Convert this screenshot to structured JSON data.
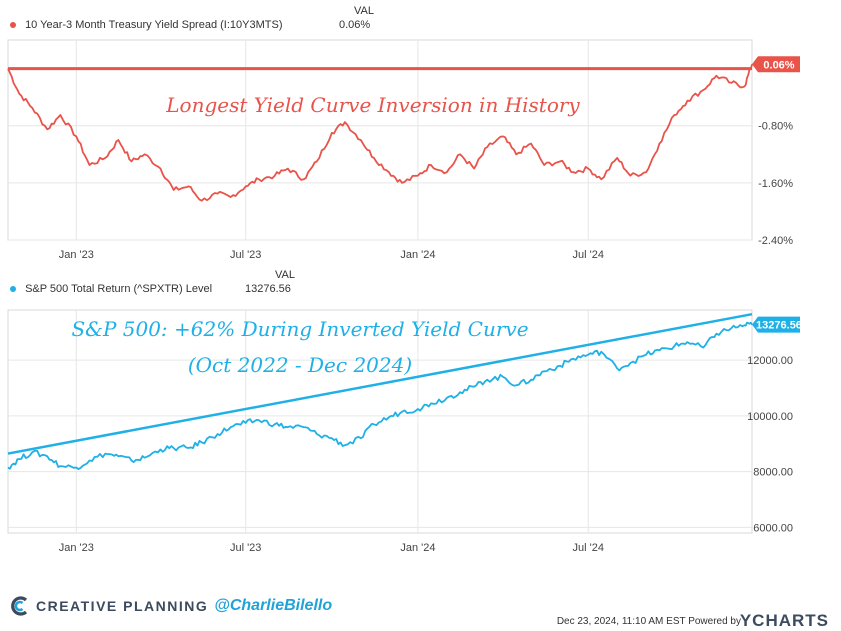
{
  "legend_top": {
    "series_name": "10 Year-3 Month Treasury Yield Spread (I:10Y3MTS)",
    "val_header": "VAL",
    "value": "0.06%",
    "color": "#e8534a"
  },
  "legend_bottom": {
    "series_name": "S&P 500 Total Return (^SPXTR) Level",
    "val_header": "VAL",
    "value": "13276.56",
    "color": "#1eb0e6"
  },
  "footer": {
    "brand": "CREATIVE PLANNING",
    "handle": "@CharlieBilello",
    "timestamp": "Dec 23, 2024, 11:10 AM EST Powered by",
    "ycharts": "YCHARTS"
  },
  "chart_data": [
    {
      "type": "line",
      "series": [
        {
          "name": "10 Year-3 Month Treasury Yield Spread (I:10Y3MTS)",
          "color": "#e8534a",
          "x": [
            "2022-10-20",
            "2022-11-01",
            "2022-11-15",
            "2022-12-01",
            "2022-12-15",
            "2023-01-01",
            "2023-01-15",
            "2023-02-01",
            "2023-02-15",
            "2023-03-01",
            "2023-03-15",
            "2023-04-01",
            "2023-04-15",
            "2023-05-01",
            "2023-05-15",
            "2023-06-01",
            "2023-06-15",
            "2023-07-01",
            "2023-07-15",
            "2023-08-01",
            "2023-08-15",
            "2023-09-01",
            "2023-09-15",
            "2023-10-01",
            "2023-10-15",
            "2023-11-01",
            "2023-11-15",
            "2023-12-01",
            "2023-12-15",
            "2024-01-01",
            "2024-01-15",
            "2024-02-01",
            "2024-02-15",
            "2024-03-01",
            "2024-03-15",
            "2024-04-01",
            "2024-04-15",
            "2024-05-01",
            "2024-05-15",
            "2024-06-01",
            "2024-06-15",
            "2024-07-01",
            "2024-07-15",
            "2024-08-01",
            "2024-08-15",
            "2024-09-01",
            "2024-09-15",
            "2024-10-01",
            "2024-10-15",
            "2024-11-01",
            "2024-11-15",
            "2024-12-01",
            "2024-12-15",
            "2024-12-23"
          ],
          "values": [
            0.0,
            -0.35,
            -0.55,
            -0.85,
            -0.65,
            -0.95,
            -1.35,
            -1.25,
            -1.0,
            -1.3,
            -1.2,
            -1.4,
            -1.7,
            -1.65,
            -1.85,
            -1.75,
            -1.8,
            -1.65,
            -1.55,
            -1.5,
            -1.4,
            -1.55,
            -1.3,
            -0.9,
            -0.75,
            -1.0,
            -1.25,
            -1.45,
            -1.6,
            -1.5,
            -1.35,
            -1.45,
            -1.2,
            -1.4,
            -1.1,
            -0.95,
            -1.2,
            -1.05,
            -1.35,
            -1.3,
            -1.45,
            -1.4,
            -1.55,
            -1.25,
            -1.5,
            -1.45,
            -1.05,
            -0.65,
            -0.45,
            -0.3,
            -0.1,
            -0.2,
            -0.25,
            0.06
          ]
        }
      ],
      "ylim": [
        -2.4,
        0.4
      ],
      "yticks": [
        "0.06%",
        "-0.80%",
        "-1.60%",
        "-2.40%"
      ],
      "yticks_values": [
        0.06,
        -0.8,
        -1.6,
        -2.4
      ],
      "xtick_labels": [
        "Jan '23",
        "Jul '23",
        "Jan '24",
        "Jul '24"
      ],
      "xtick_dates": [
        "2023-01-01",
        "2023-07-01",
        "2024-01-01",
        "2024-07-01"
      ],
      "x_range": [
        "2022-10-20",
        "2024-12-23"
      ],
      "reference_line": 0.0,
      "annotation": "Longest Yield Curve Inversion in History",
      "grid": true
    },
    {
      "type": "line",
      "series": [
        {
          "name": "S&P 500 Total Return (^SPXTR) Level",
          "color": "#1eb0e6",
          "x": [
            "2022-10-20",
            "2022-11-01",
            "2022-11-15",
            "2022-12-01",
            "2022-12-15",
            "2023-01-01",
            "2023-01-15",
            "2023-02-01",
            "2023-02-15",
            "2023-03-01",
            "2023-03-15",
            "2023-04-01",
            "2023-04-15",
            "2023-05-01",
            "2023-05-15",
            "2023-06-01",
            "2023-06-15",
            "2023-07-01",
            "2023-07-15",
            "2023-08-01",
            "2023-08-15",
            "2023-09-01",
            "2023-09-15",
            "2023-10-01",
            "2023-10-15",
            "2023-11-01",
            "2023-11-15",
            "2023-12-01",
            "2023-12-15",
            "2024-01-01",
            "2024-01-15",
            "2024-02-01",
            "2024-02-15",
            "2024-03-01",
            "2024-03-15",
            "2024-04-01",
            "2024-04-15",
            "2024-05-01",
            "2024-05-15",
            "2024-06-01",
            "2024-06-15",
            "2024-07-01",
            "2024-07-15",
            "2024-08-01",
            "2024-08-15",
            "2024-09-01",
            "2024-09-15",
            "2024-10-01",
            "2024-10-15",
            "2024-11-01",
            "2024-11-15",
            "2024-12-01",
            "2024-12-15",
            "2024-12-23"
          ],
          "values": [
            8150,
            8450,
            8700,
            8550,
            8200,
            8150,
            8400,
            8650,
            8550,
            8400,
            8500,
            8800,
            8850,
            8850,
            9050,
            9350,
            9600,
            9750,
            9850,
            9700,
            9600,
            9600,
            9350,
            9200,
            8950,
            9200,
            9700,
            9950,
            10150,
            10250,
            10450,
            10650,
            10850,
            11050,
            11300,
            11400,
            11100,
            11300,
            11600,
            11800,
            12050,
            12200,
            12300,
            11700,
            11900,
            12200,
            12350,
            12500,
            12650,
            12450,
            12950,
            13150,
            13250,
            13276.56
          ]
        }
      ],
      "ylim": [
        5800,
        13800
      ],
      "yticks": [
        "13276.56",
        "12000.00",
        "10000.00",
        "8000.00",
        "6000.00"
      ],
      "yticks_values": [
        13276.56,
        12000,
        10000,
        8000,
        6000
      ],
      "xtick_labels": [
        "Jan '23",
        "Jul '23",
        "Jan '24",
        "Jul '24"
      ],
      "xtick_dates": [
        "2023-01-01",
        "2023-07-01",
        "2024-01-01",
        "2024-07-01"
      ],
      "x_range": [
        "2022-10-20",
        "2024-12-23"
      ],
      "trend_line": {
        "start": [
          "2022-10-20",
          8650
        ],
        "end": [
          "2024-12-23",
          13650
        ]
      },
      "annotation_line1": "S&P 500: +62% During Inverted Yield Curve",
      "annotation_line2": "(Oct 2022 - Dec 2024)",
      "grid": true
    }
  ]
}
